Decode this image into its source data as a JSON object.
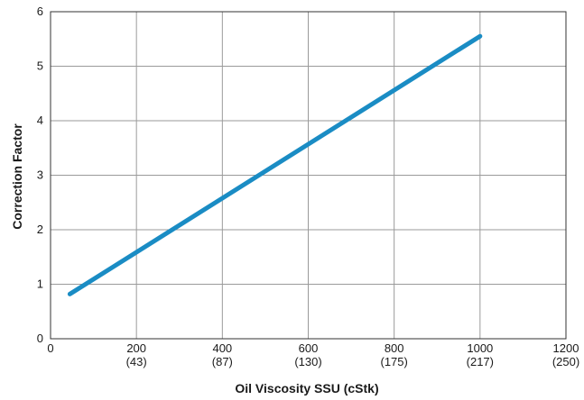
{
  "chart_data": {
    "type": "line",
    "title": "",
    "xlabel": "Oil Viscosity SSU (cStk)",
    "ylabel": "Correction Factor",
    "xlim": [
      0,
      1200
    ],
    "ylim": [
      0,
      6
    ],
    "grid": true,
    "x_ticks": [
      {
        "value": 0,
        "label": "0",
        "sublabel": ""
      },
      {
        "value": 200,
        "label": "200",
        "sublabel": "(43)"
      },
      {
        "value": 400,
        "label": "400",
        "sublabel": "(87)"
      },
      {
        "value": 600,
        "label": "600",
        "sublabel": "(130)"
      },
      {
        "value": 800,
        "label": "800",
        "sublabel": "(175)"
      },
      {
        "value": 1000,
        "label": "1000",
        "sublabel": "(217)"
      },
      {
        "value": 1200,
        "label": "1200",
        "sublabel": "(250)"
      }
    ],
    "y_ticks": [
      {
        "value": 0,
        "label": "0"
      },
      {
        "value": 1,
        "label": "1"
      },
      {
        "value": 2,
        "label": "2"
      },
      {
        "value": 3,
        "label": "3"
      },
      {
        "value": 4,
        "label": "4"
      },
      {
        "value": 5,
        "label": "5"
      },
      {
        "value": 6,
        "label": "6"
      }
    ],
    "series": [
      {
        "color": "#1a8cc4",
        "x": [
          45,
          1000
        ],
        "y": [
          0.82,
          5.55
        ]
      }
    ]
  }
}
